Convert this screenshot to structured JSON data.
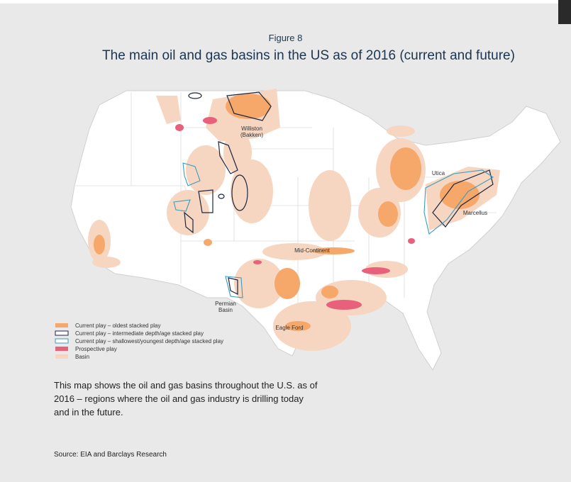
{
  "figure_label": "Figure 8",
  "title": "The main oil and gas basins in the US as of 2016 (current and future)",
  "map_labels": [
    {
      "lines": [
        "Williston",
        "(Bakken)"
      ]
    },
    {
      "lines": [
        "Utica"
      ]
    },
    {
      "lines": [
        "Marcellus"
      ]
    },
    {
      "lines": [
        "Mid-Continent"
      ]
    },
    {
      "lines": [
        "Permian",
        "Basin"
      ]
    },
    {
      "lines": [
        "Eagle Ford"
      ]
    }
  ],
  "legend": [
    "Current play – oldest stacked play",
    "Current play – intermediate depth/age stacked play",
    "Current play – shallowest/youngest depth/age stacked play",
    "Prospective play",
    "Basin"
  ],
  "caption": "This map shows the oil and gas basins throughout the U.S. as of 2016 – regions where the oil and gas industry is drilling today and in the future.",
  "source": "Source: EIA and Barclays Research"
}
